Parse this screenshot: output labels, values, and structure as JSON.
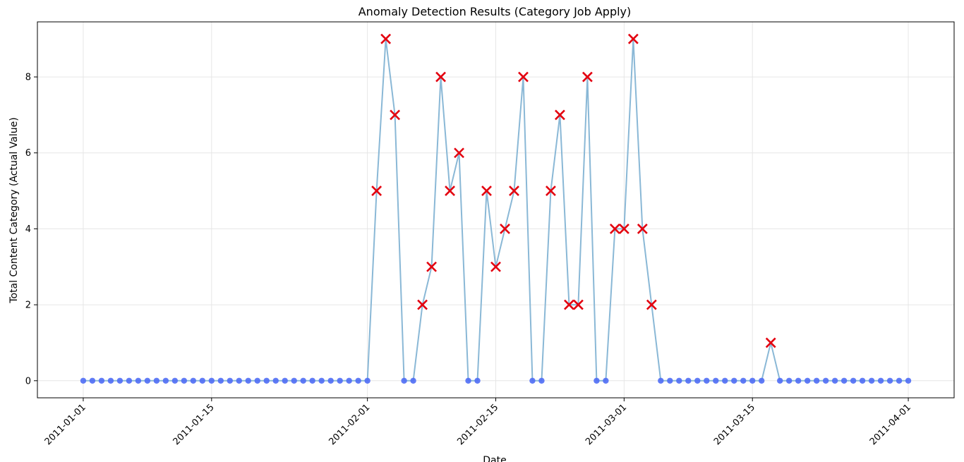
{
  "chart_data": {
    "type": "line",
    "title": "Anomaly Detection Results (Category Job Apply)",
    "xlabel": "Date",
    "ylabel": "Total Content Category (Actual Value)",
    "x_start": "2011-01-01",
    "x_end": "2011-04-01",
    "xlim": [
      "2010-12-27",
      "2011-04-06"
    ],
    "ylim": [
      -0.45,
      9.45
    ],
    "x_ticks": [
      "2011-01-01",
      "2011-01-15",
      "2011-02-01",
      "2011-02-15",
      "2011-03-01",
      "2011-03-15",
      "2011-04-01"
    ],
    "y_ticks": [
      0,
      2,
      4,
      6,
      8
    ],
    "grid": true,
    "colors": {
      "line": "#8ab8d6",
      "normal_marker": "#4f6df5",
      "anomaly_marker": "#e3000f"
    },
    "series": [
      {
        "values": [
          0,
          0,
          0,
          0,
          0,
          0,
          0,
          0,
          0,
          0,
          0,
          0,
          0,
          0,
          0,
          0,
          0,
          0,
          0,
          0,
          0,
          0,
          0,
          0,
          0,
          0,
          0,
          0,
          0,
          0,
          0,
          0,
          5,
          9,
          7,
          0,
          0,
          2,
          3,
          8,
          5,
          6,
          0,
          0,
          5,
          3,
          4,
          5,
          8,
          0,
          0,
          5,
          7,
          2,
          2,
          8,
          0,
          0,
          4,
          4,
          9,
          4,
          2,
          0,
          0,
          0,
          0,
          0,
          0,
          0,
          0,
          0,
          0,
          0,
          0,
          1,
          0,
          0,
          0,
          0,
          0,
          0,
          0,
          0,
          0,
          0,
          0,
          0,
          0,
          0,
          0
        ],
        "anomalies": [
          32,
          33,
          34,
          37,
          38,
          39,
          40,
          41,
          44,
          45,
          46,
          47,
          48,
          51,
          52,
          53,
          54,
          55,
          58,
          59,
          60,
          61,
          62,
          75
        ]
      }
    ]
  }
}
